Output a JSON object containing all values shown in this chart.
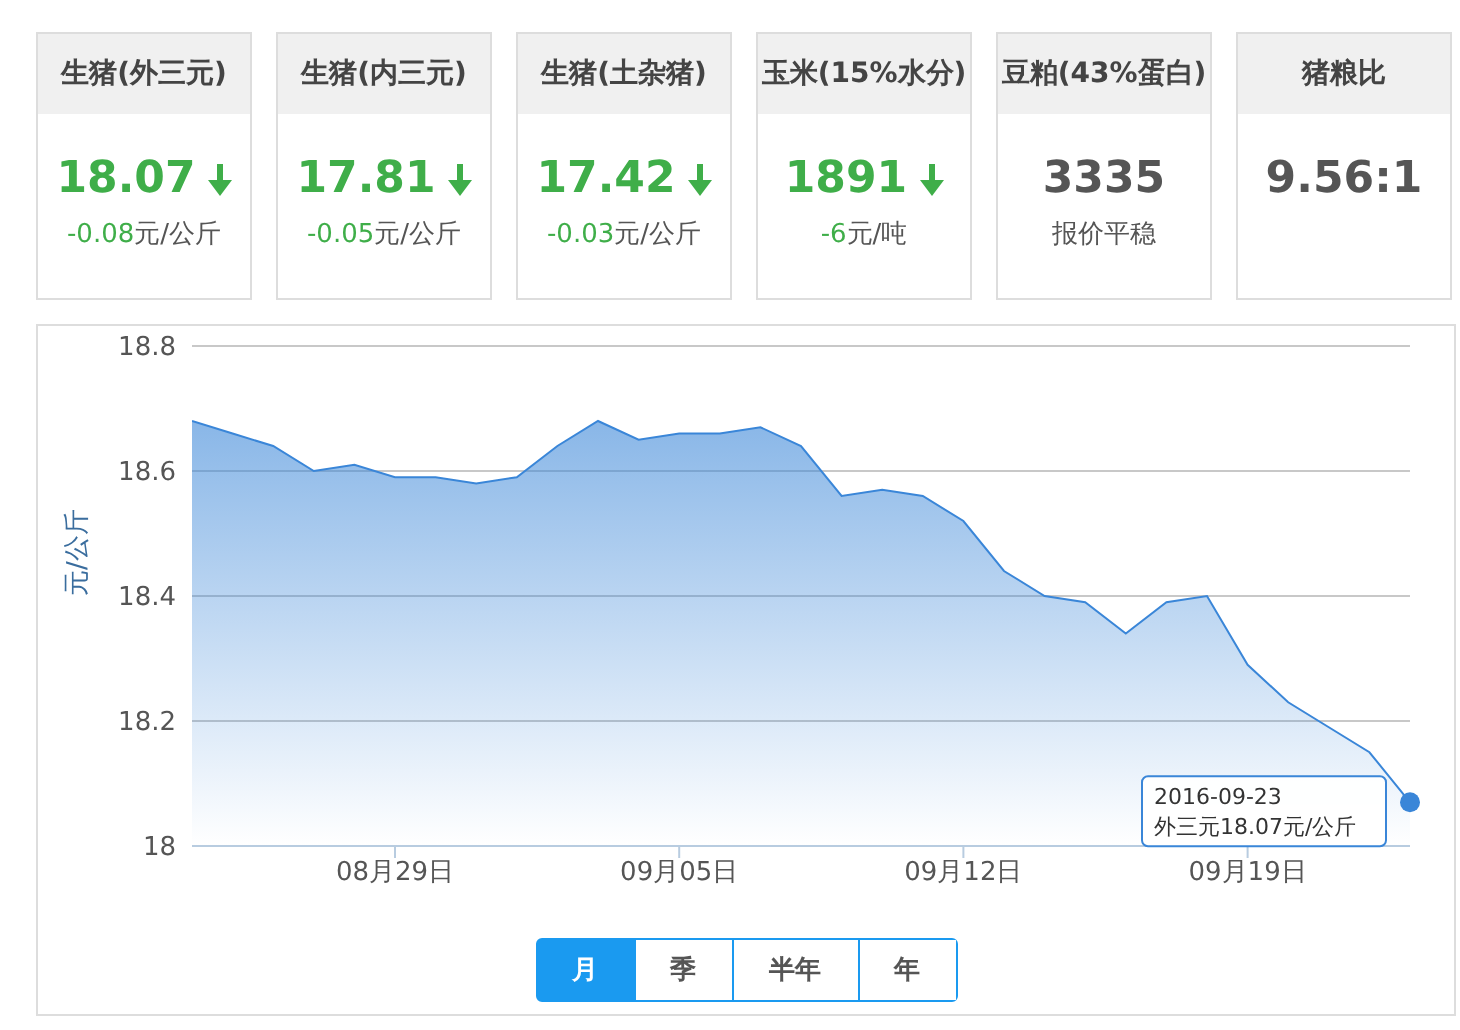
{
  "chart_data": [
    {
      "type": "other",
      "title": "生猪(外三元)",
      "annotations": [
        "18.07",
        "-0.08元/公斤"
      ],
      "color": "#3fae49"
    },
    {
      "type": "other",
      "title": "生猪(内三元)",
      "annotations": [
        "17.81",
        "-0.05元/公斤"
      ],
      "color": "#3fae49"
    },
    {
      "type": "other",
      "title": "生猪(土杂猪)",
      "annotations": [
        "17.42",
        "-0.03元/公斤"
      ],
      "color": "#3fae49"
    },
    {
      "type": "other",
      "title": "玉米(15%水分)",
      "annotations": [
        "1891",
        "-6元/吨"
      ],
      "color": "#3fae49"
    },
    {
      "type": "other",
      "title": "豆粕(43%蛋白)",
      "annotations": [
        "3335",
        "报价平稳"
      ]
    },
    {
      "type": "other",
      "title": "猪粮比",
      "annotations": [
        "9.56:1"
      ]
    },
    {
      "type": "area",
      "ylabel": "元/公斤",
      "x": [
        "2016-08-24",
        "2016-08-25",
        "2016-08-26",
        "2016-08-27",
        "2016-08-28",
        "2016-08-29",
        "2016-08-30",
        "2016-08-31",
        "2016-09-01",
        "2016-09-02",
        "2016-09-03",
        "2016-09-04",
        "2016-09-05",
        "2016-09-06",
        "2016-09-07",
        "2016-09-08",
        "2016-09-09",
        "2016-09-10",
        "2016-09-11",
        "2016-09-12",
        "2016-09-13",
        "2016-09-14",
        "2016-09-15",
        "2016-09-16",
        "2016-09-17",
        "2016-09-18",
        "2016-09-19",
        "2016-09-20",
        "2016-09-21",
        "2016-09-22",
        "2016-09-23"
      ],
      "series": [
        {
          "color": "#3a86d8",
          "values": [
            18.68,
            18.66,
            18.64,
            18.6,
            18.61,
            18.59,
            18.59,
            18.58,
            18.59,
            18.64,
            18.68,
            18.65,
            18.66,
            18.66,
            18.67,
            18.64,
            18.56,
            18.57,
            18.56,
            18.52,
            18.44,
            18.4,
            18.39,
            18.34,
            18.39,
            18.4,
            18.29,
            18.23,
            18.19,
            18.15,
            18.07
          ]
        }
      ],
      "xlim": [
        "2016-08-24",
        "2016-09-23"
      ],
      "xticks": [
        {
          "value": "2016-08-29",
          "label": "08月29日"
        },
        {
          "value": "2016-09-05",
          "label": "09月05日"
        },
        {
          "value": "2016-09-12",
          "label": "09月12日"
        },
        {
          "value": "2016-09-19",
          "label": "09月19日"
        }
      ],
      "ylim": [
        18,
        18.8
      ],
      "yticks": [
        18,
        18.2,
        18.4,
        18.6,
        18.8
      ],
      "grid": "y",
      "legend": false,
      "marker": "none",
      "annotations": [
        {
          "text": "2016-09-23\n外三元18.07元/公斤",
          "x": "2016-09-23",
          "y": 18.07
        },
        "月",
        "季",
        "半年",
        "年"
      ]
    }
  ]
}
